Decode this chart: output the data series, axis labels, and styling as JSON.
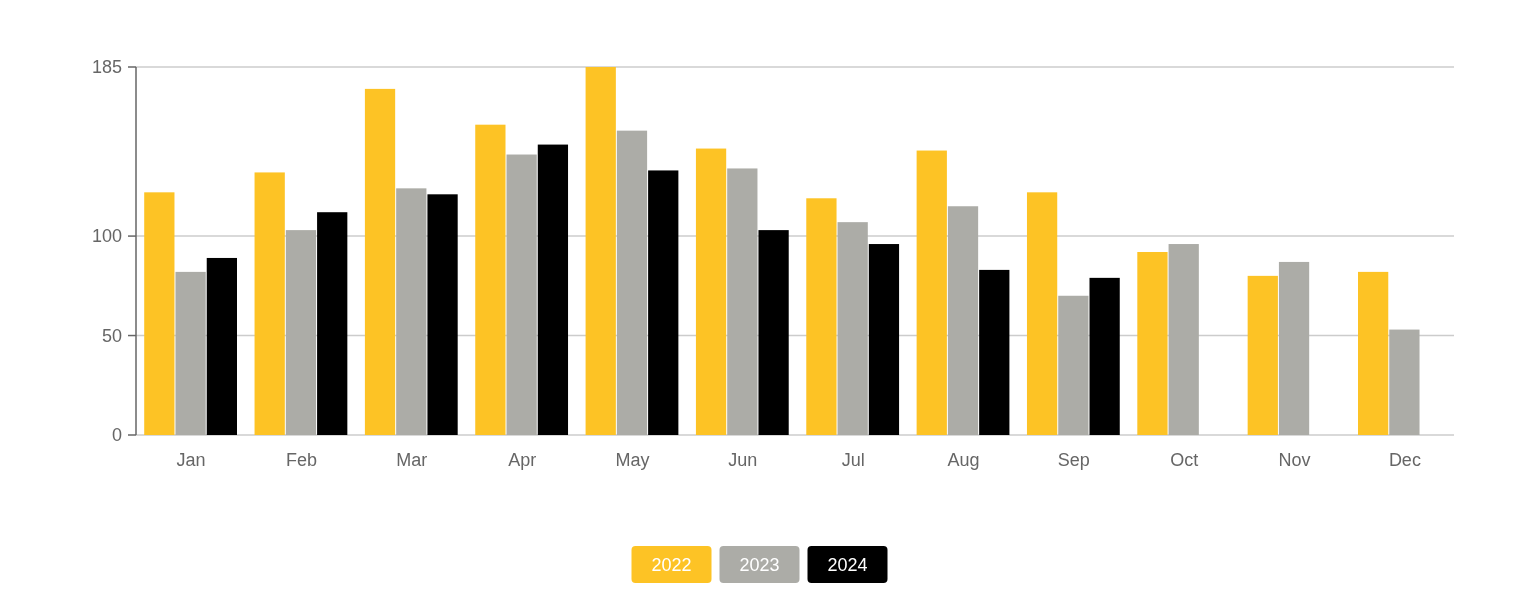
{
  "chart_data": {
    "type": "bar",
    "categories": [
      "Jan",
      "Feb",
      "Mar",
      "Apr",
      "May",
      "Jun",
      "Jul",
      "Aug",
      "Sep",
      "Oct",
      "Nov",
      "Dec"
    ],
    "series": [
      {
        "name": "2022",
        "color": "#fdc325",
        "values": [
          122,
          132,
          174,
          156,
          185,
          144,
          119,
          143,
          122,
          92,
          80,
          82
        ]
      },
      {
        "name": "2023",
        "color": "#acaca7",
        "values": [
          82,
          103,
          124,
          141,
          153,
          134,
          107,
          115,
          70,
          96,
          87,
          53
        ]
      },
      {
        "name": "2024",
        "color": "#000000",
        "values": [
          89,
          112,
          121,
          146,
          133,
          103,
          96,
          83,
          79,
          null,
          null,
          null
        ]
      }
    ],
    "ylim": [
      0,
      185
    ],
    "yticks": [
      0,
      50,
      100,
      185
    ],
    "grid": "y",
    "legend": "bottom"
  }
}
